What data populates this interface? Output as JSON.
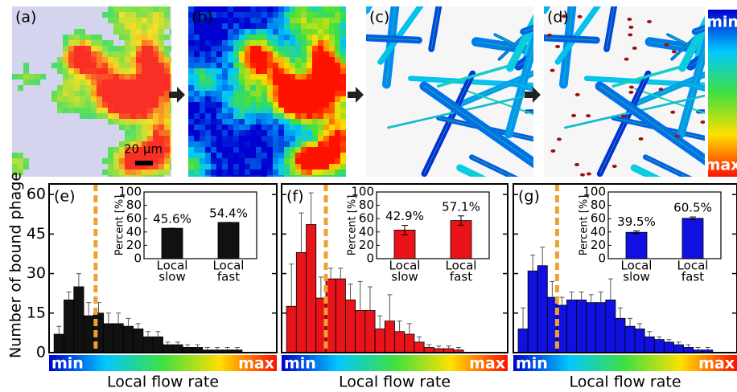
{
  "figure": {
    "panel_labels": [
      "(a)",
      "(b)",
      "(c)",
      "(d)"
    ],
    "scale_bar": "20 μm",
    "colorbar": [
      "min",
      "max"
    ]
  },
  "chart_data": [
    {
      "type": "bar",
      "label": "(e)",
      "y_label": "Number of bound phage",
      "x_label": "Local flow rate",
      "x_colorbar": [
        "min",
        "max"
      ],
      "tick_labels": true,
      "color": "#111111",
      "values": [
        7,
        20,
        25,
        14,
        15,
        11,
        11,
        10,
        9,
        6,
        6,
        3,
        3,
        2,
        2,
        1,
        1,
        1,
        1
      ],
      "errors": [
        3,
        3,
        5,
        5,
        4,
        4,
        4,
        3,
        2,
        2,
        2,
        1,
        1,
        1,
        1,
        1,
        1,
        1,
        1
      ],
      "xlim": [
        -0.5,
        22.5
      ],
      "ylim": [
        0,
        64
      ],
      "yticks": [
        0,
        15,
        30,
        45,
        60
      ],
      "threshold": 4.2,
      "threshold_color": "#f0a030",
      "inset": {
        "type": "bar",
        "y_label": "Percent [%]",
        "categories": [
          [
            "Local",
            "slow"
          ],
          [
            "Local",
            "fast"
          ]
        ],
        "values": [
          45.6,
          54.4
        ],
        "value_labels": [
          "45.6%",
          "54.4%"
        ],
        "errors": [
          0,
          0
        ],
        "ylim": [
          0,
          100
        ],
        "yticks": [
          0,
          20,
          40,
          60,
          80,
          100
        ]
      }
    },
    {
      "type": "bar",
      "label": "(f)",
      "x_label": "Local flow rate",
      "x_colorbar": [
        "min",
        "max"
      ],
      "tick_labels": false,
      "color": "#e8141a",
      "values": [
        17.6,
        38,
        48.6,
        20.7,
        28,
        28,
        20,
        16,
        16,
        9,
        12,
        8,
        7,
        4,
        2,
        1.5,
        1.5,
        1
      ],
      "errors": [
        16,
        15,
        12,
        8,
        4,
        4,
        6,
        11,
        9,
        5,
        10,
        4,
        4,
        2,
        1,
        1,
        1,
        1
      ],
      "xlim": [
        -0.5,
        22.5
      ],
      "ylim": [
        0,
        64
      ],
      "yticks": [
        0,
        15,
        30,
        45,
        60
      ],
      "threshold": 4.0,
      "threshold_color": "#f0a030",
      "inset": {
        "type": "bar",
        "y_label": "Percent [%]",
        "categories": [
          [
            "Local",
            "slow"
          ],
          [
            "Local",
            "fast"
          ]
        ],
        "values": [
          42.9,
          57.1
        ],
        "value_labels": [
          "42.9%",
          "57.1%"
        ],
        "errors": [
          7,
          7
        ],
        "ylim": [
          0,
          100
        ],
        "yticks": [
          0,
          20,
          40,
          60,
          80,
          100
        ]
      }
    },
    {
      "type": "bar",
      "label": "(g)",
      "x_label": "Local flow rate",
      "x_colorbar": [
        "min",
        "max"
      ],
      "tick_labels": false,
      "color": "#1010e0",
      "values": [
        9,
        31,
        33,
        21,
        18,
        20,
        20,
        19,
        19,
        20,
        13,
        10,
        9,
        6,
        5,
        4,
        3,
        2,
        1,
        1
      ],
      "errors": [
        8,
        6,
        7,
        6,
        3,
        3,
        3,
        3,
        4,
        8,
        4,
        3,
        2,
        2,
        1,
        1,
        1,
        1,
        1,
        1
      ],
      "xlim": [
        -0.5,
        22.5
      ],
      "ylim": [
        0,
        64
      ],
      "yticks": [
        0,
        15,
        30,
        45,
        60
      ],
      "threshold": 4.0,
      "threshold_color": "#f0a030",
      "inset": {
        "type": "bar",
        "y_label": "Percent [%]",
        "categories": [
          [
            "Local",
            "slow"
          ],
          [
            "Local",
            "fast"
          ]
        ],
        "values": [
          39.5,
          60.5
        ],
        "value_labels": [
          "39.5%",
          "60.5%"
        ],
        "errors": [
          2,
          2
        ],
        "ylim": [
          0,
          100
        ],
        "yticks": [
          0,
          20,
          40,
          60,
          80,
          100
        ]
      }
    }
  ]
}
